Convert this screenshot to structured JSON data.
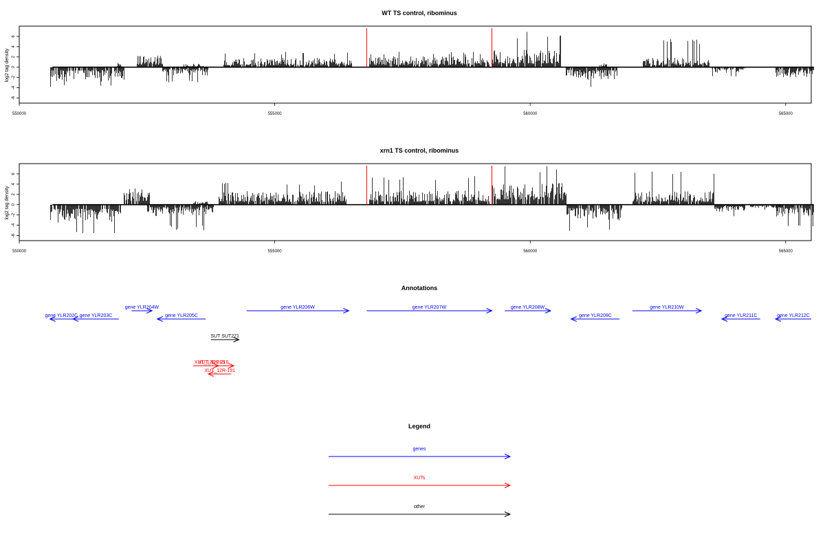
{
  "chart_data": [
    {
      "type": "bar",
      "title": "WT TS control, ribominus",
      "ylabel": "log2 tag density",
      "xlim": [
        550000,
        565500
      ],
      "ylim": [
        -7,
        8
      ],
      "yticks": [
        -6,
        -4,
        -2,
        0,
        2,
        4,
        6
      ],
      "xticks": [
        550000,
        555000,
        560000,
        565000
      ],
      "marker_lines": {
        "x": [
          556800,
          559250
        ],
        "color": "#ff0000"
      },
      "segments": [
        {
          "start": 550600,
          "end": 552050,
          "sign": -1,
          "mean": 2.0,
          "max": 4.0
        },
        {
          "start": 551900,
          "end": 552000,
          "sign": 1,
          "mean": 0.6,
          "max": 1.0
        },
        {
          "start": 552300,
          "end": 552800,
          "sign": 1,
          "mean": 1.6,
          "max": 3.8
        },
        {
          "start": 552800,
          "end": 553700,
          "sign": -1,
          "mean": 1.2,
          "max": 3.0
        },
        {
          "start": 553200,
          "end": 553600,
          "sign": 1,
          "mean": 0.5,
          "max": 1.0
        },
        {
          "start": 554000,
          "end": 556500,
          "sign": 1,
          "mean": 1.3,
          "max": 3.0
        },
        {
          "start": 556850,
          "end": 559200,
          "sign": 1,
          "mean": 1.5,
          "max": 3.0
        },
        {
          "start": 559250,
          "end": 560600,
          "sign": 1,
          "mean": 2.4,
          "max": 7.0
        },
        {
          "start": 560700,
          "end": 561700,
          "sign": -1,
          "mean": 1.8,
          "max": 4.0
        },
        {
          "start": 561350,
          "end": 561500,
          "sign": 1,
          "mean": 0.6,
          "max": 2.5
        },
        {
          "start": 562200,
          "end": 563500,
          "sign": 1,
          "mean": 1.3,
          "max": 5.5
        },
        {
          "start": 563550,
          "end": 564200,
          "sign": -1,
          "mean": 0.8,
          "max": 2.0
        },
        {
          "start": 564800,
          "end": 565550,
          "sign": -1,
          "mean": 1.4,
          "max": 3.8
        }
      ]
    },
    {
      "type": "bar",
      "title": "xrn1 TS control, ribominus",
      "ylabel": "log2 tag density",
      "xlim": [
        550000,
        565500
      ],
      "ylim": [
        -7,
        8
      ],
      "yticks": [
        -6,
        -4,
        -2,
        0,
        2,
        4,
        6
      ],
      "xticks": [
        550000,
        555000,
        560000,
        565000
      ],
      "marker_lines": {
        "x": [
          556800,
          559250
        ],
        "color": "#ff0000"
      },
      "segments": [
        {
          "start": 550600,
          "end": 552000,
          "sign": -1,
          "mean": 2.6,
          "max": 6.0
        },
        {
          "start": 552050,
          "end": 552550,
          "sign": 1,
          "mean": 2.3,
          "max": 5.5
        },
        {
          "start": 552500,
          "end": 553800,
          "sign": -1,
          "mean": 1.6,
          "max": 5.0
        },
        {
          "start": 553400,
          "end": 553700,
          "sign": 1,
          "mean": 0.6,
          "max": 1.5
        },
        {
          "start": 553900,
          "end": 556400,
          "sign": 1,
          "mean": 1.9,
          "max": 4.5
        },
        {
          "start": 556850,
          "end": 559200,
          "sign": 1,
          "mean": 2.0,
          "max": 6.0
        },
        {
          "start": 559250,
          "end": 560700,
          "sign": 1,
          "mean": 3.2,
          "max": 7.5
        },
        {
          "start": 560700,
          "end": 561800,
          "sign": -1,
          "mean": 2.2,
          "max": 5.5
        },
        {
          "start": 562000,
          "end": 563600,
          "sign": 1,
          "mean": 1.9,
          "max": 6.8
        },
        {
          "start": 563600,
          "end": 564200,
          "sign": -1,
          "mean": 1.0,
          "max": 2.5
        },
        {
          "start": 564300,
          "end": 564900,
          "sign": -1,
          "mean": 0.5,
          "max": 1.2
        },
        {
          "start": 564800,
          "end": 565550,
          "sign": -1,
          "mean": 1.8,
          "max": 4.3
        }
      ]
    }
  ],
  "annotations": {
    "title": "Annotations",
    "features": [
      {
        "label": "gene YLR202C",
        "start": 550600,
        "end": 551050,
        "strand": "-",
        "row": 0,
        "type": "genes"
      },
      {
        "label": "gene YLR203C",
        "start": 551050,
        "end": 551950,
        "strand": "-",
        "row": 0,
        "type": "genes"
      },
      {
        "label": "gene YLR204W",
        "start": 552200,
        "end": 552600,
        "strand": "+",
        "row": 1,
        "type": "genes"
      },
      {
        "label": "gene YLR205C",
        "start": 552700,
        "end": 553650,
        "strand": "-",
        "row": 0,
        "type": "genes"
      },
      {
        "label": "gene YLR206W",
        "start": 554450,
        "end": 556450,
        "strand": "+",
        "row": 1,
        "type": "genes"
      },
      {
        "label": "gene YLR207W",
        "start": 556800,
        "end": 559250,
        "strand": "+",
        "row": 1,
        "type": "genes"
      },
      {
        "label": "gene YLR208W",
        "start": 559500,
        "end": 560400,
        "strand": "+",
        "row": 1,
        "type": "genes"
      },
      {
        "label": "gene YLR209C",
        "start": 560800,
        "end": 561750,
        "strand": "-",
        "row": 0,
        "type": "genes"
      },
      {
        "label": "gene YLR210W",
        "start": 562000,
        "end": 563350,
        "strand": "+",
        "row": 1,
        "type": "genes"
      },
      {
        "label": "gene YLR211C",
        "start": 563750,
        "end": 564500,
        "strand": "-",
        "row": 0,
        "type": "genes"
      },
      {
        "label": "gene YLR212C",
        "start": 564800,
        "end": 566000,
        "strand": "-",
        "row": 0,
        "type": "genes"
      },
      {
        "label": "SUT SUT271",
        "start": 553750,
        "end": 554300,
        "strand": "+",
        "row": 2,
        "type": "other"
      },
      {
        "label": "XUT_12R-191",
        "start": 553700,
        "end": 554150,
        "strand": "-",
        "row": 4,
        "type": "XUTs"
      },
      {
        "label": "XUT_12F-216",
        "start": 553400,
        "end": 554200,
        "strand": "+",
        "row": 3,
        "type": "XUTs"
      },
      {
        "label": "XUT_12F-215",
        "start": 553550,
        "end": 553900,
        "strand": "+",
        "row": 3,
        "type": "XUTs"
      }
    ]
  },
  "legend": {
    "title": "Legend",
    "entries": [
      {
        "label": "genes",
        "color": "#0000ff"
      },
      {
        "label": "XUTs",
        "color": "#ff0000"
      },
      {
        "label": "other",
        "color": "#000000"
      }
    ]
  }
}
